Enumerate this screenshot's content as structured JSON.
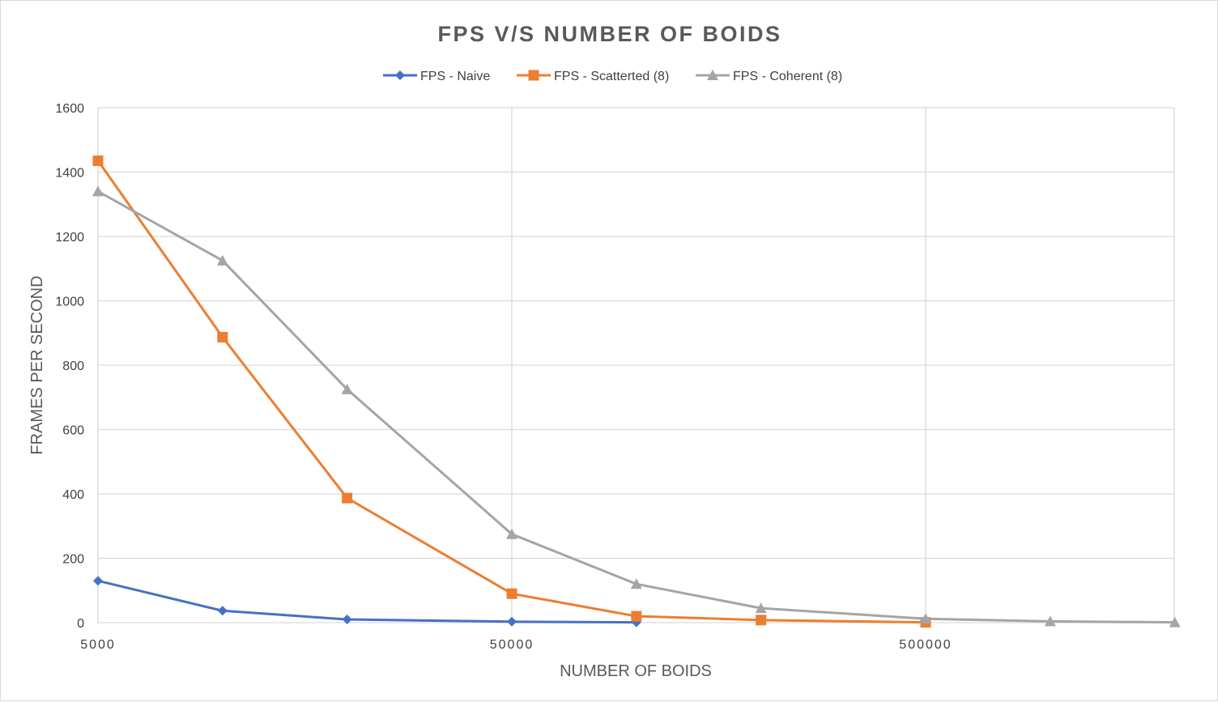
{
  "chart_data": {
    "type": "line",
    "title": "FPS V/S NUMBER OF BOIDS",
    "xlabel": "NUMBER OF BOIDS",
    "ylabel": "FRAMES PER SECOND",
    "x_scale": "log",
    "xlim": [
      5000,
      1000000
    ],
    "ylim": [
      0,
      1600
    ],
    "y_ticks": [
      "0",
      "200",
      "400",
      "600",
      "800",
      "1000",
      "1200",
      "1400",
      "1600"
    ],
    "x_ticks": [
      "5000",
      "50000",
      "500000"
    ],
    "grid": true,
    "legend_position": "top",
    "series": [
      {
        "name": "FPS - Naive",
        "color": "#4472c4",
        "marker": "diamond",
        "x": [
          5000,
          10000,
          20000,
          50000,
          100000
        ],
        "y": [
          130,
          37,
          10,
          3,
          1
        ]
      },
      {
        "name": "FPS - Scatterted (8)",
        "color": "#ed7d31",
        "marker": "square",
        "x": [
          5000,
          10000,
          20000,
          50000,
          100000,
          200000,
          500000
        ],
        "y": [
          1435,
          887,
          387,
          90,
          20,
          8,
          1
        ]
      },
      {
        "name": "FPS - Coherent (8)",
        "color": "#a5a5a5",
        "marker": "triangle",
        "x": [
          5000,
          10000,
          20000,
          50000,
          100000,
          200000,
          500000,
          1000000,
          2000000
        ],
        "y": [
          1340,
          1125,
          725,
          275,
          120,
          45,
          12,
          4,
          1
        ]
      }
    ]
  }
}
